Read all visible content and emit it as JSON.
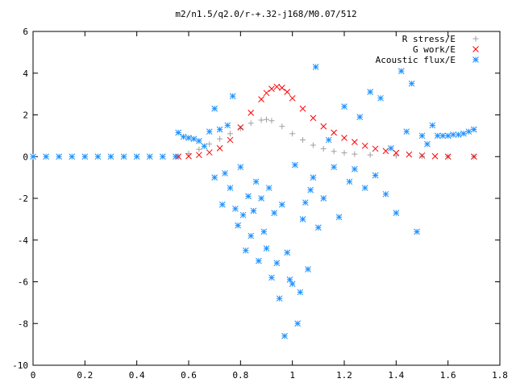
{
  "chart_data": {
    "type": "scatter",
    "title": "m2/n1.5/q2.0/r-+.32-j168/M0.07/512",
    "xlabel": "",
    "ylabel": "",
    "xlim": [
      0,
      1.8
    ],
    "ylim": [
      -10,
      6
    ],
    "xticks": [
      0,
      0.2,
      0.4,
      0.6,
      0.8,
      1,
      1.2,
      1.4,
      1.6,
      1.8
    ],
    "xtick_labels": [
      "0",
      "0.2",
      "0.4",
      "0.6",
      "0.8",
      "1",
      "1.2",
      "1.4",
      "1.6",
      "1.8"
    ],
    "yticks": [
      -10,
      -8,
      -6,
      -4,
      -2,
      0,
      2,
      4,
      6
    ],
    "ytick_labels": [
      "-10",
      "-8",
      "-6",
      "-4",
      "-2",
      "0",
      "2",
      "4",
      "6"
    ],
    "grid": false,
    "legend_position": "top-right",
    "series": [
      {
        "name": "R stress/E",
        "marker": "plus",
        "color": "#a0a0a0",
        "x": [
          0.56,
          0.6,
          0.64,
          0.68,
          0.72,
          0.76,
          0.8,
          0.84,
          0.88,
          0.9,
          0.92,
          0.96,
          1.0,
          1.04,
          1.08,
          1.12,
          1.16,
          1.2,
          1.24,
          1.3,
          1.4,
          1.5,
          1.6,
          1.7
        ],
        "y": [
          0.0,
          0.15,
          0.35,
          0.6,
          0.85,
          1.1,
          1.35,
          1.6,
          1.75,
          1.78,
          1.72,
          1.45,
          1.1,
          0.8,
          0.55,
          0.38,
          0.25,
          0.18,
          0.12,
          0.08,
          0.04,
          0.02,
          0.01,
          0.0
        ]
      },
      {
        "name": "G work/E",
        "marker": "cross",
        "color": "#ff0000",
        "x": [
          0.56,
          0.6,
          0.64,
          0.68,
          0.72,
          0.76,
          0.8,
          0.84,
          0.88,
          0.9,
          0.92,
          0.94,
          0.96,
          0.98,
          1.0,
          1.04,
          1.08,
          1.12,
          1.16,
          1.2,
          1.24,
          1.28,
          1.32,
          1.36,
          1.4,
          1.45,
          1.5,
          1.55,
          1.6,
          1.7
        ],
        "y": [
          0.0,
          0.02,
          0.08,
          0.2,
          0.4,
          0.8,
          1.4,
          2.1,
          2.75,
          3.05,
          3.25,
          3.35,
          3.3,
          3.1,
          2.8,
          2.3,
          1.85,
          1.45,
          1.15,
          0.9,
          0.7,
          0.52,
          0.38,
          0.27,
          0.18,
          0.1,
          0.05,
          0.02,
          0.0,
          0.0
        ]
      },
      {
        "name": "Acoustic flux/E",
        "marker": "star",
        "color": "#1e90ff",
        "x": [
          0.0,
          0.05,
          0.1,
          0.15,
          0.2,
          0.25,
          0.3,
          0.35,
          0.4,
          0.45,
          0.5,
          0.55,
          0.56,
          0.58,
          0.6,
          0.62,
          0.64,
          0.66,
          0.68,
          0.7,
          0.7,
          0.72,
          0.73,
          0.74,
          0.75,
          0.76,
          0.77,
          0.78,
          0.79,
          0.8,
          0.81,
          0.82,
          0.83,
          0.84,
          0.85,
          0.86,
          0.87,
          0.88,
          0.89,
          0.9,
          0.91,
          0.92,
          0.93,
          0.94,
          0.95,
          0.96,
          0.97,
          0.98,
          0.99,
          1.0,
          1.01,
          1.02,
          1.03,
          1.04,
          1.05,
          1.06,
          1.07,
          1.08,
          1.09,
          1.1,
          1.12,
          1.14,
          1.16,
          1.18,
          1.2,
          1.22,
          1.24,
          1.26,
          1.28,
          1.3,
          1.32,
          1.34,
          1.36,
          1.38,
          1.4,
          1.42,
          1.44,
          1.46,
          1.48,
          1.5,
          1.52,
          1.54,
          1.56,
          1.58,
          1.6,
          1.62,
          1.64,
          1.66,
          1.68,
          1.7
        ],
        "y": [
          0.0,
          0.0,
          0.0,
          0.0,
          0.0,
          0.0,
          0.0,
          0.0,
          0.0,
          0.0,
          0.0,
          0.0,
          1.15,
          0.95,
          0.9,
          0.85,
          0.75,
          0.5,
          1.2,
          2.3,
          -1.0,
          1.3,
          -2.3,
          -0.8,
          1.5,
          -1.5,
          2.9,
          -2.5,
          -3.3,
          -0.5,
          -2.8,
          -4.5,
          -1.9,
          -3.8,
          -2.6,
          -1.2,
          -5.0,
          -2.0,
          -3.6,
          -4.4,
          -1.5,
          -5.8,
          -2.7,
          -5.1,
          -6.8,
          -2.3,
          -8.6,
          -4.6,
          -5.9,
          -6.1,
          -0.4,
          -8.0,
          -6.5,
          -3.0,
          -2.2,
          -5.4,
          -1.6,
          -1.0,
          4.3,
          -3.4,
          -2.0,
          0.8,
          -0.5,
          -2.9,
          2.4,
          -1.2,
          -0.6,
          1.9,
          -1.5,
          3.1,
          -0.9,
          2.8,
          -1.8,
          0.4,
          -2.7,
          4.1,
          1.2,
          3.5,
          -3.6,
          1.0,
          0.6,
          1.5,
          1.0,
          1.0,
          1.0,
          1.05,
          1.05,
          1.1,
          1.2,
          1.3
        ]
      }
    ]
  }
}
